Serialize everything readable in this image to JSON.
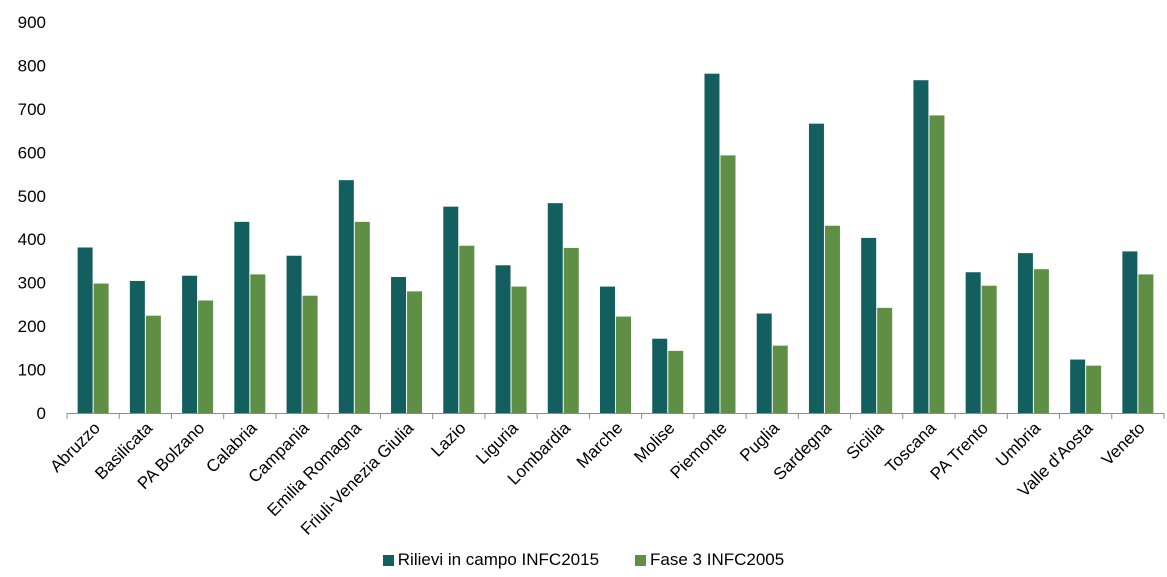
{
  "chart_data": {
    "type": "bar",
    "title": "",
    "xlabel": "",
    "ylabel": "",
    "ylim": [
      0,
      900
    ],
    "yticks": [
      0,
      100,
      200,
      300,
      400,
      500,
      600,
      700,
      800,
      900
    ],
    "grid": false,
    "legend_position": "bottom",
    "categories": [
      "Abruzzo",
      "Basilicata",
      "PA Bolzano",
      "Calabria",
      "Campania",
      "Emilia Romagna",
      "Friuli-Venezia Giulia",
      "Lazio",
      "Liguria",
      "Lombardia",
      "Marche",
      "Molise",
      "Piemonte",
      "Puglia",
      "Sardegna",
      "Sicilia",
      "Toscana",
      "PA Trento",
      "Umbria",
      "Valle d'Aosta",
      "Veneto"
    ],
    "series": [
      {
        "name": "Rilievi in campo INFC2015",
        "color": "#135f5f",
        "values": [
          381,
          304,
          316,
          440,
          362,
          536,
          313,
          475,
          340,
          483,
          291,
          171,
          781,
          229,
          666,
          403,
          766,
          324,
          368,
          123,
          372
        ]
      },
      {
        "name": "Fase 3 INFC2005",
        "color": "#5f8f45",
        "values": [
          298,
          224,
          259,
          319,
          270,
          440,
          280,
          385,
          291,
          380,
          222,
          143,
          593,
          155,
          431,
          242,
          685,
          293,
          331,
          109,
          319
        ]
      }
    ]
  }
}
